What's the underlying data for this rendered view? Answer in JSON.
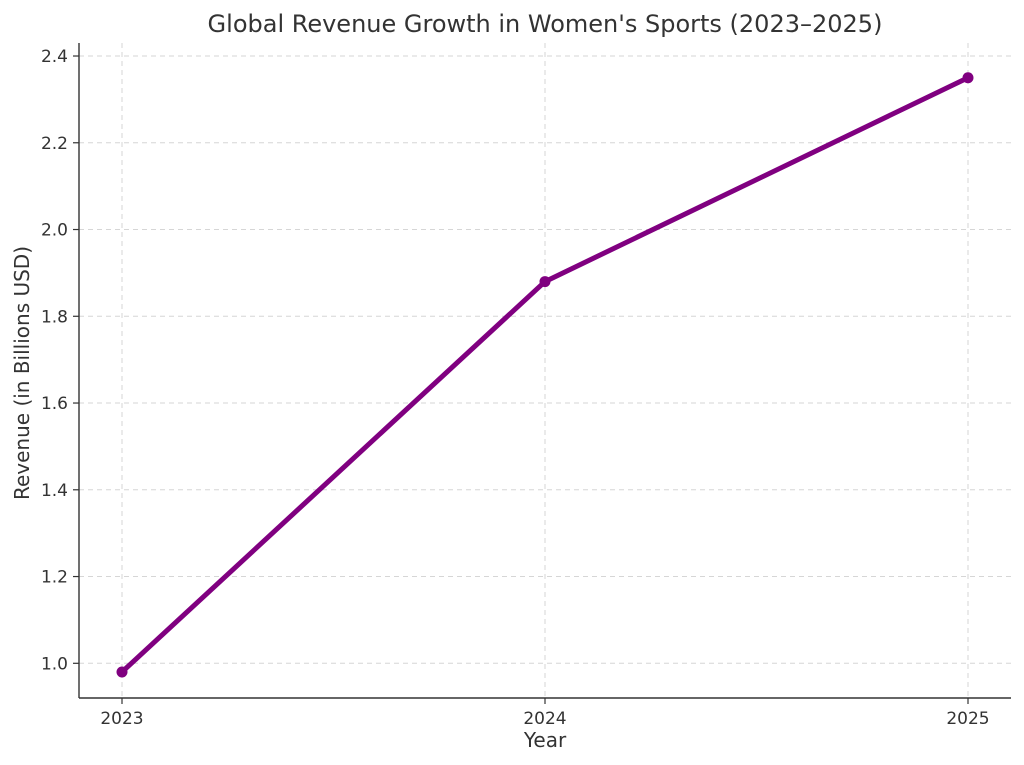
{
  "chart_data": {
    "type": "line",
    "title": "Global Revenue Growth in Women's Sports (2023–2025)",
    "xlabel": "Year",
    "ylabel": "Revenue (in Billions USD)",
    "categories": [
      "2023",
      "2024",
      "2025"
    ],
    "series": [
      {
        "values": [
          0.98,
          1.88,
          2.35
        ],
        "color": "#800080"
      }
    ],
    "ylim": [
      0.92,
      2.43
    ],
    "yticks": [
      "1.0",
      "1.2",
      "1.4",
      "1.6",
      "1.8",
      "2.0",
      "2.2",
      "2.4"
    ],
    "grid": true,
    "legend": "none"
  }
}
